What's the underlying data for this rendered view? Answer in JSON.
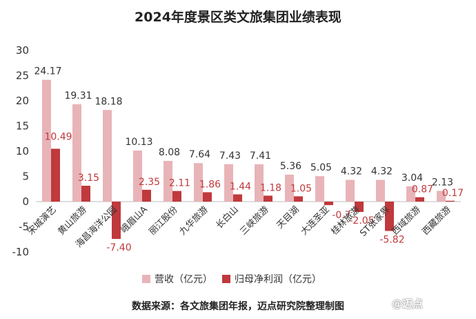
{
  "chart_data": {
    "type": "bar",
    "title": "2024年度景区类文旅集团业绩表现",
    "categories": [
      "宋城演艺",
      "黄山旅游",
      "海昌海洋公园",
      "峨眉山A",
      "丽江股份",
      "九华旅游",
      "长白山",
      "三峡旅游",
      "天目湖",
      "大连圣亚",
      "桂林旅游",
      "ST张家界",
      "西域旅游",
      "西藏旅游"
    ],
    "series": [
      {
        "name": "营收（亿元）",
        "color": "#e8b4b8",
        "values": [
          24.17,
          19.31,
          18.18,
          10.13,
          8.08,
          7.64,
          7.43,
          7.41,
          5.36,
          5.05,
          4.32,
          4.32,
          3.04,
          2.13
        ]
      },
      {
        "name": "归母净利润（亿元）",
        "color": "#c0393c",
        "values": [
          10.49,
          3.15,
          -7.4,
          2.35,
          2.11,
          1.86,
          1.44,
          1.18,
          1.05,
          -0.7,
          -2.05,
          -5.82,
          0.87,
          0.17
        ]
      }
    ],
    "data_labels": {
      "revenue": [
        "24.17",
        "19.31",
        "18.18",
        "10.13",
        "8.08",
        "7.64",
        "7.43",
        "7.41",
        "5.36",
        "5.05",
        "4.32",
        "4.32",
        "3.04",
        "2.13"
      ],
      "profit": [
        "10.49",
        "3.15",
        "-7.40",
        "2.35",
        "2.11",
        "1.86",
        "1.44",
        "1.18",
        "1.05",
        "-0.7",
        "-2.05",
        "-5.82",
        "0.87",
        "0.17"
      ]
    },
    "yticks": [
      "30",
      "25",
      "20",
      "15",
      "10",
      "5",
      "0",
      "-5",
      "-10"
    ],
    "ylim": [
      -10,
      30
    ],
    "grid": false,
    "legend_position": "bottom",
    "xlabel": "",
    "ylabel": ""
  },
  "source_text": "数据来源：各文旅集团年报，迈点研究院整理制图",
  "watermark_text": "@迈点",
  "colors": {
    "revenue": "#e8b4b8",
    "profit": "#c0393c",
    "profit_label": "#c0393c",
    "revenue_label": "#333333"
  }
}
